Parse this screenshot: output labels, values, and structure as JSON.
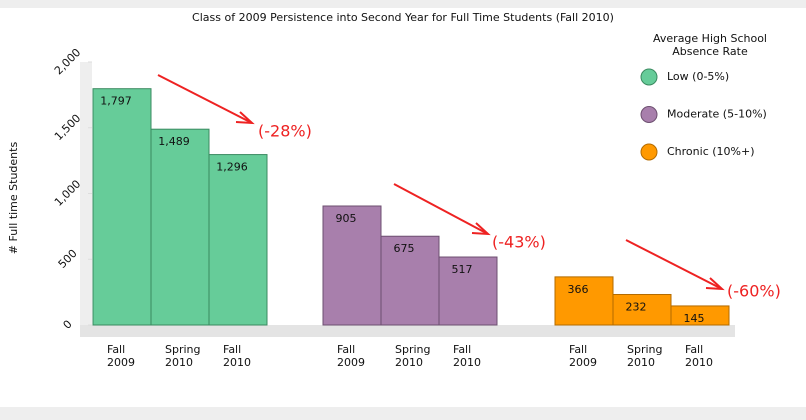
{
  "chart_data": {
    "type": "bar",
    "title": "Class of 2009 Persistence into Second Year for Full Time Students (Fall 2010)",
    "y_label": "# Full time Students",
    "legend_title": "Average High School Absence Rate",
    "legend_position": "upper right",
    "categories": [
      "Fall 2009",
      "Spring 2010",
      "Fall 2010"
    ],
    "series": [
      {
        "name": "Low (0-5%)",
        "color": "#66cc99",
        "values": [
          1797,
          1489,
          1296
        ],
        "value_labels": [
          "1,797",
          "1,489",
          "1,296"
        ]
      },
      {
        "name": "Moderate (5-10%)",
        "color": "#a87fac",
        "values": [
          905,
          675,
          517
        ]
      },
      {
        "name": "Chronic (10%+)",
        "color": "#ff9900",
        "values": [
          366,
          232,
          145
        ]
      }
    ],
    "annotations": [
      "(-28%)",
      "(-43%)",
      "(-60%)"
    ],
    "ylim": [
      0,
      2000
    ],
    "yticks": [
      0,
      500,
      {
        "value": 1000,
        "label": "1,000"
      },
      {
        "value": 1500,
        "label": "1,500"
      },
      {
        "value": 2000,
        "label": "2,000"
      }
    ],
    "grid": false
  }
}
